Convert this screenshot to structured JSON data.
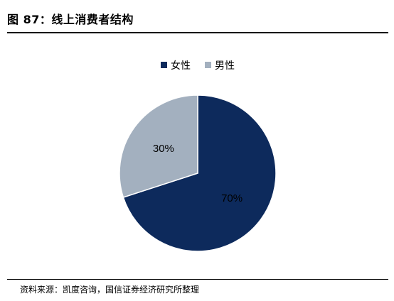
{
  "header": {
    "title": "图 87：线上消费者结构"
  },
  "footer": {
    "source": "资料来源：凯度咨询，国信证券经济研究所整理"
  },
  "chart_data": {
    "type": "pie",
    "title": "",
    "slices": [
      {
        "name": "女性",
        "value": 70,
        "label": "70%",
        "color": "#0d2a5c"
      },
      {
        "name": "男性",
        "value": 30,
        "label": "30%",
        "color": "#a3b0bf"
      }
    ],
    "legend_position": "top-center",
    "start_angle": "12 o'clock",
    "direction": "clockwise",
    "slice_border_color": "#ffffff"
  }
}
